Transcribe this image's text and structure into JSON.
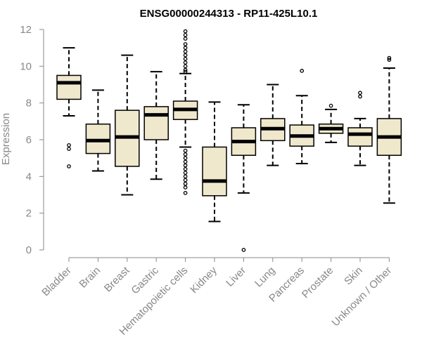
{
  "chart_data": {
    "type": "box",
    "title": "ENSG00000244313 - RP11-425L10.1",
    "xlabel": "",
    "ylabel": "Expression",
    "ylim": [
      0,
      12
    ],
    "yticks": [
      0,
      2,
      4,
      6,
      8,
      10,
      12
    ],
    "colors": {
      "box_fill": "#efe8cc",
      "axis": "#888888",
      "ink": "#000000"
    },
    "categories": [
      "Bladder",
      "Brain",
      "Breast",
      "Gastric",
      "Hematopoietic cells",
      "Kidney",
      "Liver",
      "Lung",
      "Pancreas",
      "Prostate",
      "Skin",
      "Unknown / Other"
    ],
    "boxes": [
      {
        "min": 7.3,
        "q1": 8.2,
        "median": 9.1,
        "q3": 9.5,
        "max": 11.0,
        "outliers": [
          5.5,
          5.7,
          4.55
        ]
      },
      {
        "min": 4.3,
        "q1": 5.25,
        "median": 5.95,
        "q3": 6.85,
        "max": 8.7,
        "outliers": []
      },
      {
        "min": 3.0,
        "q1": 4.55,
        "median": 6.15,
        "q3": 7.6,
        "max": 10.6,
        "outliers": []
      },
      {
        "min": 3.85,
        "q1": 6.0,
        "median": 7.35,
        "q3": 7.8,
        "max": 9.7,
        "outliers": []
      },
      {
        "min": 5.6,
        "q1": 7.1,
        "median": 7.65,
        "q3": 8.1,
        "max": 9.6,
        "outliers": [
          11.9,
          11.7,
          11.5,
          11.2,
          11.0,
          10.8,
          10.6,
          10.4,
          10.2,
          10.0,
          9.8,
          9.7,
          5.4,
          5.2,
          5.0,
          4.8,
          4.6,
          4.4,
          4.2,
          4.0,
          3.8,
          3.6,
          3.4,
          3.1
        ]
      },
      {
        "min": 1.55,
        "q1": 2.95,
        "median": 3.75,
        "q3": 5.6,
        "max": 8.05,
        "outliers": []
      },
      {
        "min": 3.1,
        "q1": 5.15,
        "median": 5.9,
        "q3": 6.65,
        "max": 7.9,
        "outliers": [
          0.0
        ]
      },
      {
        "min": 4.6,
        "q1": 5.95,
        "median": 6.6,
        "q3": 7.15,
        "max": 9.0,
        "outliers": []
      },
      {
        "min": 4.7,
        "q1": 5.65,
        "median": 6.2,
        "q3": 6.8,
        "max": 8.4,
        "outliers": [
          9.75
        ]
      },
      {
        "min": 5.85,
        "q1": 6.35,
        "median": 6.6,
        "q3": 6.85,
        "max": 7.65,
        "outliers": [
          7.85
        ]
      },
      {
        "min": 4.6,
        "q1": 5.65,
        "median": 6.3,
        "q3": 6.65,
        "max": 7.15,
        "outliers": [
          8.35,
          8.55
        ]
      },
      {
        "min": 2.55,
        "q1": 5.15,
        "median": 6.15,
        "q3": 7.15,
        "max": 9.9,
        "outliers": [
          10.35,
          10.45
        ]
      }
    ]
  }
}
